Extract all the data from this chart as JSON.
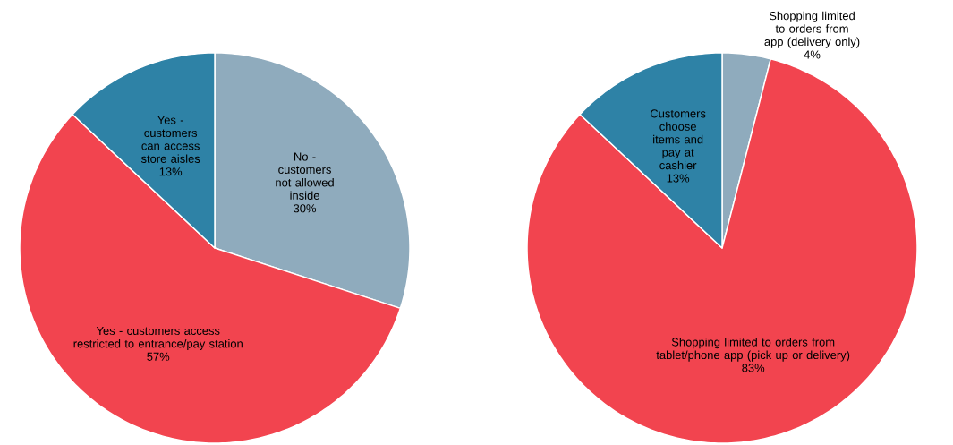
{
  "chart_data": [
    {
      "type": "pie",
      "categories": [
        "No - customers not allowed inside",
        "Yes - customers access restricted to entrance/pay station",
        "Yes - customers can access store aisles"
      ],
      "values": [
        30,
        57,
        13
      ],
      "value_labels": [
        "30%",
        "57%",
        "13%"
      ],
      "colors": [
        "#8fabbd",
        "#f2444f",
        "#2e82a6"
      ]
    },
    {
      "type": "pie",
      "categories": [
        "Shopping limited to orders from app (delivery only)",
        "Shopping limited to orders from tablet/phone app (pick up or delivery)",
        "Customers choose items and pay at cashier"
      ],
      "values": [
        4,
        83,
        13
      ],
      "value_labels": [
        "4%",
        "83%",
        "13%"
      ],
      "colors": [
        "#8fabbd",
        "#f2444f",
        "#2e82a6"
      ]
    }
  ]
}
